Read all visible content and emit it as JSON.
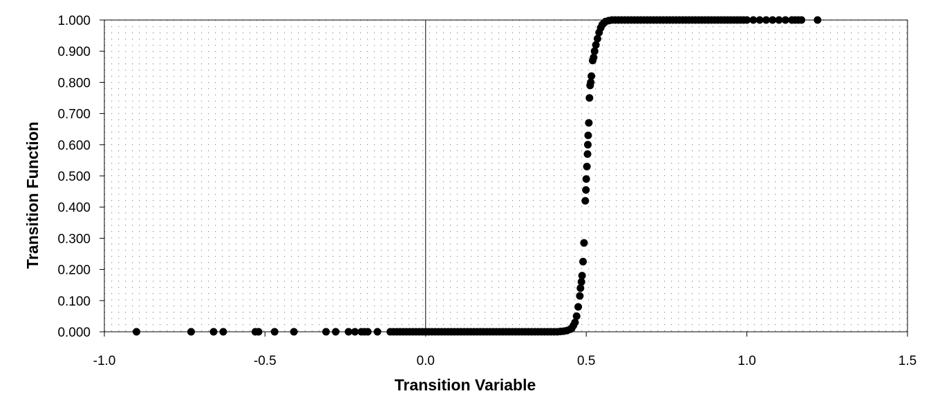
{
  "chart_data": {
    "type": "scatter",
    "title": "",
    "xlabel": "Transition Variable",
    "ylabel": "Transition Function",
    "xlim": [
      -1.0,
      1.5
    ],
    "ylim": [
      0.0,
      1.0
    ],
    "x_ticks": [
      "-1.0",
      "-0.5",
      "0.0",
      "0.5",
      "1.0",
      "1.5"
    ],
    "x_tick_values": [
      -1.0,
      -0.5,
      0.0,
      0.5,
      1.0,
      1.5
    ],
    "y_ticks": [
      "0.000",
      "0.100",
      "0.200",
      "0.300",
      "0.400",
      "0.500",
      "0.600",
      "0.700",
      "0.800",
      "0.900",
      "1.000"
    ],
    "y_tick_values": [
      0.0,
      0.1,
      0.2,
      0.3,
      0.4,
      0.5,
      0.6,
      0.7,
      0.8,
      0.9,
      1.0
    ],
    "grid": "dotted",
    "marker_color": "#000000",
    "series": [
      {
        "points": [
          [
            -0.9,
            0.0
          ],
          [
            -0.73,
            0.0
          ],
          [
            -0.66,
            0.0
          ],
          [
            -0.63,
            0.0
          ],
          [
            -0.53,
            0.0
          ],
          [
            -0.52,
            0.0
          ],
          [
            -0.47,
            0.0
          ],
          [
            -0.41,
            0.0
          ],
          [
            -0.31,
            0.0
          ],
          [
            -0.28,
            0.0
          ],
          [
            -0.24,
            0.0
          ],
          [
            -0.22,
            0.0
          ],
          [
            -0.2,
            0.0
          ],
          [
            -0.19,
            0.0
          ],
          [
            -0.18,
            0.0
          ],
          [
            -0.15,
            0.0
          ],
          [
            -0.11,
            0.0
          ],
          [
            -0.1,
            0.0
          ],
          [
            -0.09,
            0.0
          ],
          [
            -0.08,
            0.0
          ],
          [
            -0.07,
            0.0
          ],
          [
            -0.06,
            0.0
          ],
          [
            -0.05,
            0.0
          ],
          [
            -0.04,
            0.0
          ],
          [
            -0.03,
            0.0
          ],
          [
            -0.02,
            0.0
          ],
          [
            -0.01,
            0.0
          ],
          [
            0.0,
            0.0
          ],
          [
            0.01,
            0.0
          ],
          [
            0.02,
            0.0
          ],
          [
            0.03,
            0.0
          ],
          [
            0.04,
            0.0
          ],
          [
            0.05,
            0.0
          ],
          [
            0.06,
            0.0
          ],
          [
            0.07,
            0.0
          ],
          [
            0.08,
            0.0
          ],
          [
            0.09,
            0.0
          ],
          [
            0.1,
            0.0
          ],
          [
            0.11,
            0.0
          ],
          [
            0.12,
            0.0
          ],
          [
            0.13,
            0.0
          ],
          [
            0.14,
            0.0
          ],
          [
            0.15,
            0.0
          ],
          [
            0.16,
            0.0
          ],
          [
            0.17,
            0.0
          ],
          [
            0.18,
            0.0
          ],
          [
            0.19,
            0.0
          ],
          [
            0.2,
            0.0
          ],
          [
            0.21,
            0.0
          ],
          [
            0.22,
            0.0
          ],
          [
            0.23,
            0.0
          ],
          [
            0.24,
            0.0
          ],
          [
            0.25,
            0.0
          ],
          [
            0.26,
            0.0
          ],
          [
            0.27,
            0.0
          ],
          [
            0.28,
            0.0
          ],
          [
            0.29,
            0.0
          ],
          [
            0.3,
            0.0
          ],
          [
            0.31,
            0.0
          ],
          [
            0.32,
            0.0
          ],
          [
            0.33,
            0.0
          ],
          [
            0.34,
            0.0
          ],
          [
            0.35,
            0.0
          ],
          [
            0.36,
            0.0
          ],
          [
            0.37,
            0.0
          ],
          [
            0.38,
            0.0
          ],
          [
            0.39,
            0.0
          ],
          [
            0.4,
            0.0
          ],
          [
            0.41,
            0.0
          ],
          [
            0.42,
            0.001
          ],
          [
            0.43,
            0.002
          ],
          [
            0.44,
            0.004
          ],
          [
            0.45,
            0.008
          ],
          [
            0.455,
            0.012
          ],
          [
            0.46,
            0.02
          ],
          [
            0.465,
            0.03
          ],
          [
            0.47,
            0.05
          ],
          [
            0.475,
            0.08
          ],
          [
            0.48,
            0.115
          ],
          [
            0.482,
            0.14
          ],
          [
            0.485,
            0.16
          ],
          [
            0.487,
            0.18
          ],
          [
            0.49,
            0.225
          ],
          [
            0.493,
            0.285
          ],
          [
            0.497,
            0.42
          ],
          [
            0.499,
            0.455
          ],
          [
            0.5,
            0.49
          ],
          [
            0.502,
            0.53
          ],
          [
            0.504,
            0.57
          ],
          [
            0.505,
            0.6
          ],
          [
            0.506,
            0.63
          ],
          [
            0.508,
            0.67
          ],
          [
            0.51,
            0.75
          ],
          [
            0.512,
            0.79
          ],
          [
            0.514,
            0.8
          ],
          [
            0.516,
            0.82
          ],
          [
            0.52,
            0.87
          ],
          [
            0.523,
            0.88
          ],
          [
            0.526,
            0.9
          ],
          [
            0.53,
            0.92
          ],
          [
            0.535,
            0.94
          ],
          [
            0.54,
            0.96
          ],
          [
            0.545,
            0.975
          ],
          [
            0.55,
            0.985
          ],
          [
            0.555,
            0.99
          ],
          [
            0.56,
            0.995
          ],
          [
            0.57,
            0.998
          ],
          [
            0.58,
            1.0
          ],
          [
            0.59,
            1.0
          ],
          [
            0.6,
            1.0
          ],
          [
            0.61,
            1.0
          ],
          [
            0.62,
            1.0
          ],
          [
            0.63,
            1.0
          ],
          [
            0.64,
            1.0
          ],
          [
            0.65,
            1.0
          ],
          [
            0.66,
            1.0
          ],
          [
            0.67,
            1.0
          ],
          [
            0.68,
            1.0
          ],
          [
            0.69,
            1.0
          ],
          [
            0.7,
            1.0
          ],
          [
            0.71,
            1.0
          ],
          [
            0.72,
            1.0
          ],
          [
            0.73,
            1.0
          ],
          [
            0.74,
            1.0
          ],
          [
            0.75,
            1.0
          ],
          [
            0.76,
            1.0
          ],
          [
            0.77,
            1.0
          ],
          [
            0.78,
            1.0
          ],
          [
            0.79,
            1.0
          ],
          [
            0.8,
            1.0
          ],
          [
            0.81,
            1.0
          ],
          [
            0.82,
            1.0
          ],
          [
            0.83,
            1.0
          ],
          [
            0.84,
            1.0
          ],
          [
            0.85,
            1.0
          ],
          [
            0.86,
            1.0
          ],
          [
            0.87,
            1.0
          ],
          [
            0.88,
            1.0
          ],
          [
            0.89,
            1.0
          ],
          [
            0.9,
            1.0
          ],
          [
            0.91,
            1.0
          ],
          [
            0.92,
            1.0
          ],
          [
            0.93,
            1.0
          ],
          [
            0.94,
            1.0
          ],
          [
            0.95,
            1.0
          ],
          [
            0.96,
            1.0
          ],
          [
            0.97,
            1.0
          ],
          [
            0.98,
            1.0
          ],
          [
            0.99,
            1.0
          ],
          [
            1.0,
            1.0
          ],
          [
            1.02,
            1.0
          ],
          [
            1.04,
            1.0
          ],
          [
            1.06,
            1.0
          ],
          [
            1.08,
            1.0
          ],
          [
            1.1,
            1.0
          ],
          [
            1.12,
            1.0
          ],
          [
            1.14,
            1.0
          ],
          [
            1.15,
            1.0
          ],
          [
            1.16,
            1.0
          ],
          [
            1.17,
            1.0
          ],
          [
            1.22,
            1.0
          ]
        ]
      }
    ]
  }
}
